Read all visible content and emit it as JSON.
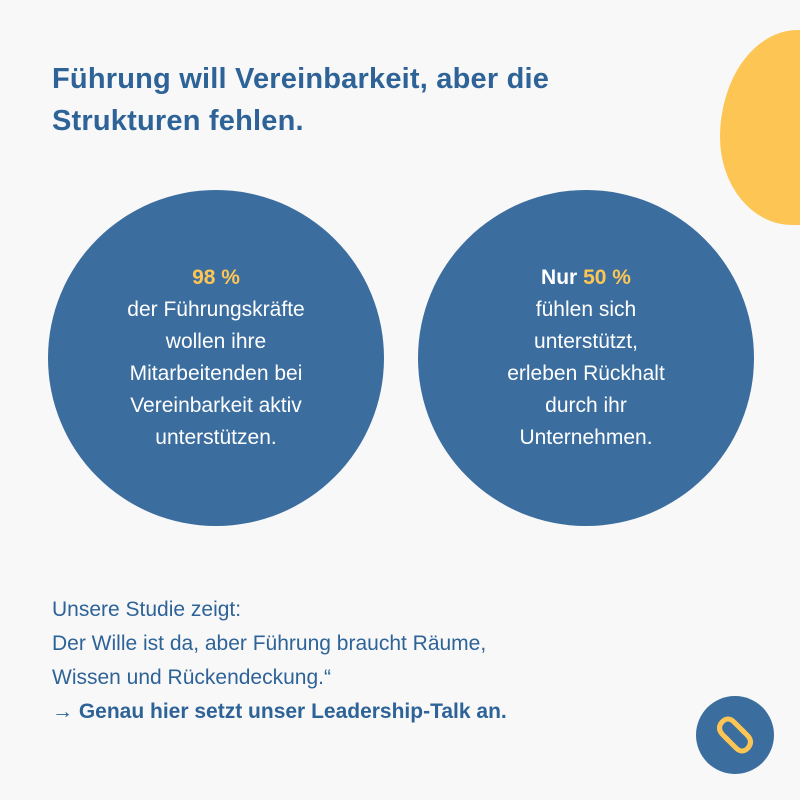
{
  "headline": {
    "line1": "Führung will Vereinbarkeit, aber die",
    "line2": "Strukturen fehlen."
  },
  "stat_left": {
    "value": "98 %",
    "lines": [
      "der Führungskräfte",
      "wollen ihre",
      "Mitarbeitenden bei",
      "Vereinbarkeit aktiv",
      "unterstützen."
    ]
  },
  "stat_right": {
    "prefix": "Nur",
    "value": "50 %",
    "lines": [
      "fühlen sich",
      "unterstützt,",
      "erleben Rückhalt",
      "durch ihr",
      "Unternehmen."
    ]
  },
  "body": {
    "line1": "Unsere Studie zeigt:",
    "line2": "Der Wille ist da, aber Führung braucht Räume,",
    "line3": "Wissen und Rückendeckung.“",
    "cta": "→ Genau hier setzt unser Leadership-Talk an."
  },
  "colors": {
    "primary": "#3b6d9f",
    "heading": "#2e6398",
    "accent": "#fdc654",
    "background": "#f8f8f8"
  },
  "icons": {
    "logo": "brand-logo-icon",
    "blob": "decorative-blob"
  }
}
